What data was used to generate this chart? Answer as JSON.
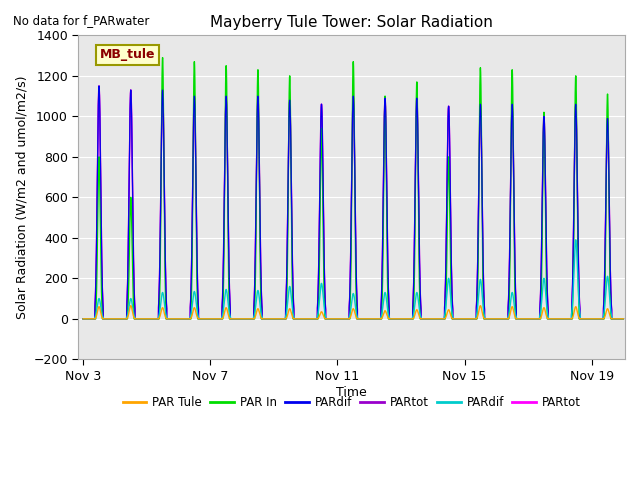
{
  "title": "Mayberry Tule Tower: Solar Radiation",
  "subtitle": "No data for f_PARwater",
  "ylabel": "Solar Radiation (W/m2 and umol/m2/s)",
  "xlabel": "Time",
  "ylim": [
    -200,
    1400
  ],
  "yticks": [
    -200,
    0,
    200,
    400,
    600,
    800,
    1000,
    1200,
    1400
  ],
  "xtick_labels": [
    "Nov 3",
    "Nov 7",
    "Nov 11",
    "Nov 15",
    "Nov 19"
  ],
  "xtick_positions": [
    3,
    7,
    11,
    15,
    19
  ],
  "start_day": 3,
  "end_day": 20,
  "peak_days": [
    3.5,
    4.5,
    5.5,
    6.5,
    7.5,
    8.5,
    9.5,
    10.5,
    11.5,
    12.5,
    13.5,
    14.5,
    15.5,
    16.5,
    17.5,
    18.5,
    19.5
  ],
  "green_peaks": [
    800,
    600,
    1290,
    1270,
    1250,
    1230,
    1200,
    940,
    1270,
    1100,
    1170,
    800,
    1240,
    1230,
    1020,
    1200,
    1110
  ],
  "magenta_peaks": [
    1150,
    1130,
    1130,
    1100,
    1100,
    1100,
    1080,
    1060,
    1100,
    1090,
    1090,
    1050,
    1060,
    1060,
    1000,
    1060,
    990
  ],
  "orange_peaks": [
    60,
    65,
    55,
    55,
    55,
    50,
    50,
    35,
    50,
    40,
    45,
    45,
    65,
    60,
    55,
    60,
    50
  ],
  "cyan_peaks": [
    100,
    100,
    130,
    135,
    145,
    140,
    160,
    175,
    125,
    130,
    130,
    200,
    195,
    130,
    200,
    390,
    210
  ],
  "purple_peaks": [
    1150,
    1130,
    1130,
    1100,
    1100,
    1100,
    1080,
    1060,
    1100,
    1090,
    1090,
    1050,
    1060,
    1060,
    1000,
    1060,
    990
  ],
  "blue_peaks": [
    1150,
    1130,
    1130,
    1100,
    1100,
    1100,
    1080,
    1060,
    1100,
    1090,
    1090,
    1050,
    1060,
    1060,
    1000,
    1060,
    990
  ],
  "green_color": "#00dd00",
  "magenta_color": "#ff00ff",
  "orange_color": "#ffa500",
  "cyan_color": "#00cccc",
  "purple_color": "#9900cc",
  "blue_color": "#0000ee",
  "bg_color": "#e8e8e8"
}
